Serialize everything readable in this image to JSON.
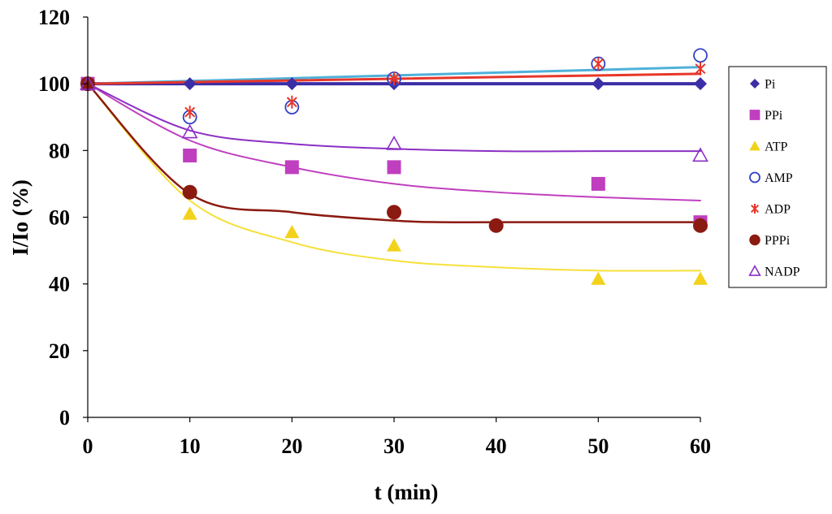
{
  "chart_data": {
    "type": "scatter",
    "title": "",
    "xlabel": "t (min)",
    "ylabel": "I/Io (%)",
    "xlim": [
      0,
      60
    ],
    "ylim": [
      0,
      120
    ],
    "xticks": [
      0,
      10,
      20,
      30,
      40,
      50,
      60
    ],
    "yticks": [
      0,
      20,
      40,
      60,
      80,
      100,
      120
    ],
    "grid": false,
    "legend_position": "right",
    "series": [
      {
        "name": "Pi",
        "marker": "diamond",
        "color": "#3b2ea6",
        "points": [
          [
            0,
            100
          ],
          [
            10,
            100
          ],
          [
            20,
            100
          ],
          [
            30,
            100
          ],
          [
            50,
            100
          ],
          [
            60,
            100
          ]
        ],
        "trend": [
          [
            0,
            100
          ],
          [
            60,
            100
          ]
        ],
        "trend_color": "#3b2ea6",
        "trend_width": 4
      },
      {
        "name": "PPi",
        "marker": "square",
        "color": "#bf3fbf",
        "points": [
          [
            0,
            100
          ],
          [
            10,
            78.5
          ],
          [
            20,
            75
          ],
          [
            30,
            75
          ],
          [
            50,
            70
          ],
          [
            60,
            58.5
          ]
        ],
        "trend": [
          [
            0,
            100
          ],
          [
            10,
            83
          ],
          [
            20,
            75
          ],
          [
            30,
            70
          ],
          [
            40,
            67.5
          ],
          [
            50,
            66
          ],
          [
            60,
            65
          ]
        ],
        "trend_color": "#bf3fbf",
        "trend_width": 2
      },
      {
        "name": "ATP",
        "marker": "triangle",
        "color": "#f2d21a",
        "points": [
          [
            0,
            100
          ],
          [
            10,
            61
          ],
          [
            20,
            55.5
          ],
          [
            30,
            51.5
          ],
          [
            50,
            41.5
          ],
          [
            60,
            41.5
          ]
        ],
        "trend": [
          [
            0,
            100
          ],
          [
            10,
            65
          ],
          [
            20,
            52.5
          ],
          [
            30,
            47
          ],
          [
            40,
            45
          ],
          [
            50,
            44
          ],
          [
            60,
            44
          ]
        ],
        "trend_color": "#f5e03a",
        "trend_width": 2
      },
      {
        "name": "AMP",
        "marker": "circle-open",
        "color": "#3340c4",
        "points": [
          [
            0,
            100
          ],
          [
            10,
            90
          ],
          [
            20,
            93
          ],
          [
            30,
            101.5
          ],
          [
            50,
            106
          ],
          [
            60,
            108.5
          ]
        ],
        "trend": [
          [
            0,
            100
          ],
          [
            60,
            105
          ]
        ],
        "trend_color": "#4fb1d9",
        "trend_width": 3
      },
      {
        "name": "ADP",
        "marker": "asterisk",
        "color": "#e8362a",
        "points": [
          [
            0,
            100
          ],
          [
            10,
            91.5
          ],
          [
            20,
            94.5
          ],
          [
            30,
            101.5
          ],
          [
            50,
            106
          ],
          [
            60,
            104.5
          ]
        ],
        "trend": [
          [
            0,
            100
          ],
          [
            60,
            103
          ]
        ],
        "trend_color": "#e8362a",
        "trend_width": 3
      },
      {
        "name": "PPPi",
        "marker": "circle-filled",
        "color": "#8b1a10",
        "points": [
          [
            0,
            100
          ],
          [
            10,
            67.5
          ],
          [
            30,
            61.5
          ],
          [
            40,
            57.5
          ],
          [
            60,
            57.5
          ]
        ],
        "trend": [
          [
            0,
            100
          ],
          [
            10,
            67
          ],
          [
            20,
            61.5
          ],
          [
            30,
            59
          ],
          [
            35,
            58.5
          ],
          [
            40,
            58.5
          ],
          [
            60,
            58.5
          ]
        ],
        "trend_color": "#8b1a10",
        "trend_width": 2.5
      },
      {
        "name": "NADP",
        "marker": "triangle-open",
        "color": "#8b2fc4",
        "points": [
          [
            0,
            100
          ],
          [
            10,
            85.5
          ],
          [
            30,
            82
          ],
          [
            60,
            78.5
          ]
        ],
        "trend": [
          [
            0,
            100
          ],
          [
            10,
            86
          ],
          [
            20,
            82
          ],
          [
            30,
            80.5
          ],
          [
            40,
            79.8
          ],
          [
            50,
            79.8
          ],
          [
            60,
            79.8
          ]
        ],
        "trend_color": "#8b2fc4",
        "trend_width": 2
      }
    ]
  }
}
